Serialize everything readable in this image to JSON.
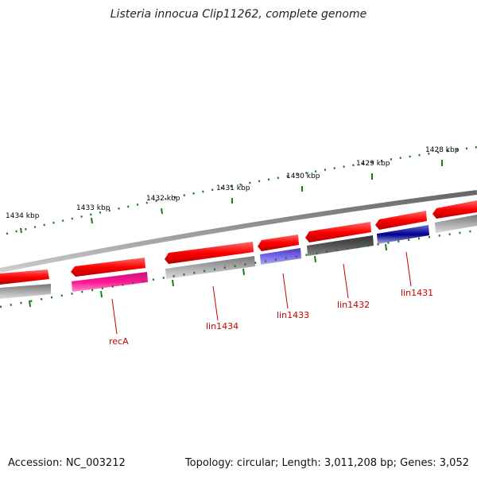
{
  "header": {
    "title": "Listeria innocua Clip11262, complete genome"
  },
  "footer": {
    "accession": "Accession: NC_003212",
    "summary": "Topology: circular; Length: 3,011,208 bp; Genes: 3,052"
  },
  "scale_labels": [
    "1434 kbp",
    "1433 kbp",
    "1432 kbp",
    "1431 kbp",
    "1430 kbp",
    "1429 kbp",
    "1428 kbp"
  ],
  "gene_labels": [
    "recA",
    "lin1434",
    "lin1433",
    "lin1432",
    "lin1431"
  ],
  "colors": {
    "backbone": "#808080",
    "feature_red": "#ff0000",
    "label_red": "#cc0000",
    "tick_green": "#1a7a1a",
    "recA_magenta": "#ff1493",
    "lin1433_blue": "#6a5acd",
    "lin1432_gray": "#555555",
    "lin1431_navy": "#00008b",
    "lightgray": "#bbbbbb"
  }
}
